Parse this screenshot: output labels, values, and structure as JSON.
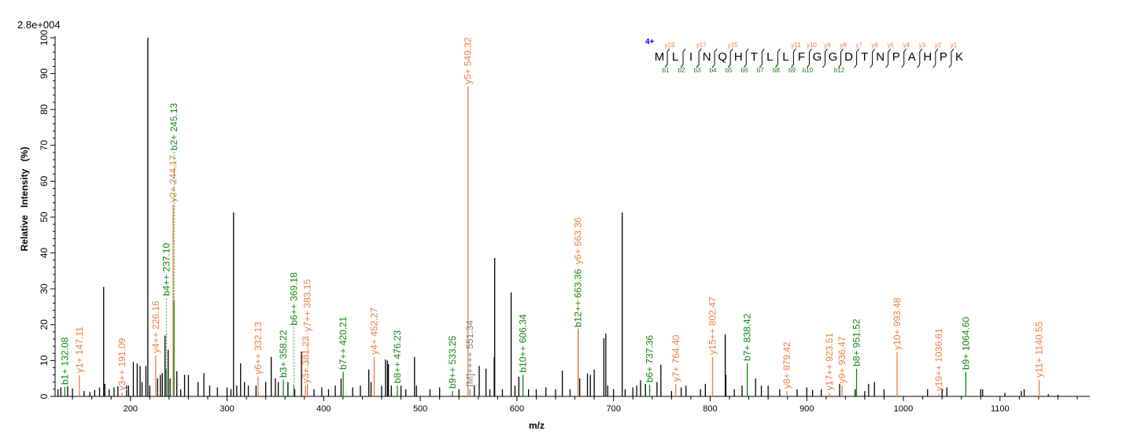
{
  "chart_data": {
    "type": "bar",
    "title": "",
    "xlabel": "m/z",
    "ylabel": "Relative Intensity (%)",
    "scale_label": "2.8e+004",
    "xlim": [
      122,
      1193
    ],
    "ylim": [
      0,
      100
    ],
    "x_ticks": [
      200,
      300,
      400,
      500,
      600,
      700,
      800,
      900,
      1000,
      1100
    ],
    "y_ticks": [
      0,
      10,
      20,
      30,
      40,
      50,
      60,
      70,
      80,
      90,
      100
    ],
    "colors": {
      "y": "#f07d3c",
      "b": "#0a8a0a",
      "m": "#808080",
      "peak": "#000000",
      "charge": "#0000ff"
    },
    "annotated_peaks": [
      {
        "label": "b1+ 132.08",
        "mz": 132.08,
        "intensity": 2.6,
        "type": "b"
      },
      {
        "label": "y1+ 147.11",
        "mz": 147.11,
        "intensity": 5.9,
        "type": "y"
      },
      {
        "label": "y3++ 191.09",
        "mz": 191.09,
        "intensity": 1.0,
        "type": "y"
      },
      {
        "label": "y4++ 226.16",
        "mz": 226.16,
        "intensity": 11.4,
        "type": "y"
      },
      {
        "label": "b4++ 237.10",
        "mz": 237.1,
        "intensity": 7.5,
        "type": "b"
      },
      {
        "label": "y2+ 244.17",
        "mz": 244.17,
        "intensity": 53.5,
        "type": "y"
      },
      {
        "label": "b2+ 245.13",
        "mz": 245.13,
        "intensity": 26.5,
        "type": "b"
      },
      {
        "label": "y6++ 332.13",
        "mz": 332.13,
        "intensity": 5.5,
        "type": "y"
      },
      {
        "label": "b3+ 358.22",
        "mz": 358.22,
        "intensity": 4.6,
        "type": "b"
      },
      {
        "label": "b6++ 369.18",
        "mz": 369.18,
        "intensity": 3.0,
        "type": "b"
      },
      {
        "label": "y3+ 381.23",
        "mz": 381.23,
        "intensity": 3.0,
        "type": "y"
      },
      {
        "label": "y7++ 383.15",
        "mz": 383.15,
        "intensity": 3.3,
        "type": "y"
      },
      {
        "label": "b7++ 420.21",
        "mz": 420.21,
        "intensity": 6.8,
        "type": "b"
      },
      {
        "label": "y4+ 452.27",
        "mz": 452.27,
        "intensity": 11.0,
        "type": "y"
      },
      {
        "label": "b8++ 476.23",
        "mz": 476.23,
        "intensity": 3.0,
        "type": "b"
      },
      {
        "label": "b9++ 533.25",
        "mz": 533.25,
        "intensity": 1.5,
        "type": "b"
      },
      {
        "label": "y5+ 549.32",
        "mz": 549.32,
        "intensity": 86.4,
        "type": "y"
      },
      {
        "label": "[M]++++ 551.34",
        "mz": 551.34,
        "intensity": 2.0,
        "type": "m"
      },
      {
        "label": "b10++ 606.34",
        "mz": 606.34,
        "intensity": 6.0,
        "type": "b"
      },
      {
        "label": "b12++ 663.36",
        "mz": 663.36,
        "intensity": 18.6,
        "type": "b"
      },
      {
        "label": "y6+ 663.36",
        "mz": 663.36,
        "intensity": 18.6,
        "type": "y"
      },
      {
        "label": "b6+ 737.36",
        "mz": 737.36,
        "intensity": 3.2,
        "type": "b"
      },
      {
        "label": "y7+ 764.40",
        "mz": 764.4,
        "intensity": 3.4,
        "type": "y"
      },
      {
        "label": "y15++ 802.47",
        "mz": 802.47,
        "intensity": 11.0,
        "type": "y"
      },
      {
        "label": "b7+ 838.42",
        "mz": 838.42,
        "intensity": 9.2,
        "type": "b"
      },
      {
        "label": "y8+ 879.42",
        "mz": 879.42,
        "intensity": 1.5,
        "type": "y"
      },
      {
        "label": "y17++ 923.51",
        "mz": 923.51,
        "intensity": 1.0,
        "type": "y"
      },
      {
        "label": "y9+ 936.47",
        "mz": 936.47,
        "intensity": 3.0,
        "type": "y"
      },
      {
        "label": "b8+ 951.52",
        "mz": 951.52,
        "intensity": 7.7,
        "type": "b"
      },
      {
        "label": "y10+ 993.48",
        "mz": 993.48,
        "intensity": 12.3,
        "type": "y"
      },
      {
        "label": "y19++ 1036.61",
        "mz": 1036.61,
        "intensity": 0.8,
        "type": "y"
      },
      {
        "label": "b9+ 1064.60",
        "mz": 1064.6,
        "intensity": 6.8,
        "type": "b"
      },
      {
        "label": "y11+ 1140.55",
        "mz": 1140.55,
        "intensity": 4.6,
        "type": "y"
      }
    ],
    "peaks": [
      [
        125,
        2
      ],
      [
        128,
        2.5
      ],
      [
        135,
        2.8
      ],
      [
        140,
        2.2
      ],
      [
        152,
        1.5
      ],
      [
        158,
        1.2
      ],
      [
        163,
        1.8
      ],
      [
        168,
        2.5
      ],
      [
        172.3,
        30.5
      ],
      [
        173.5,
        3.5
      ],
      [
        178,
        2
      ],
      [
        183,
        2.5
      ],
      [
        187,
        2.8
      ],
      [
        196,
        3
      ],
      [
        198,
        3
      ],
      [
        203,
        9.6
      ],
      [
        207,
        9.2
      ],
      [
        210,
        8.5
      ],
      [
        212,
        4
      ],
      [
        216,
        8.5
      ],
      [
        218,
        100
      ],
      [
        220,
        3
      ],
      [
        228,
        5
      ],
      [
        231,
        6
      ],
      [
        233,
        6.5
      ],
      [
        235.8,
        17
      ],
      [
        239,
        13
      ],
      [
        241,
        5
      ],
      [
        248,
        7
      ],
      [
        252,
        2
      ],
      [
        256,
        6
      ],
      [
        260,
        6
      ],
      [
        270,
        4
      ],
      [
        276,
        6.5
      ],
      [
        282,
        3
      ],
      [
        290,
        2.5
      ],
      [
        300,
        2.5
      ],
      [
        304,
        2
      ],
      [
        306.7,
        51.3
      ],
      [
        310,
        3
      ],
      [
        314,
        9.2
      ],
      [
        318,
        4
      ],
      [
        322,
        3
      ],
      [
        330,
        3
      ],
      [
        340,
        4
      ],
      [
        345.7,
        11
      ],
      [
        350,
        5
      ],
      [
        353,
        4
      ],
      [
        363,
        4
      ],
      [
        370,
        2
      ],
      [
        377,
        12.5
      ],
      [
        390,
        2
      ],
      [
        398,
        2.5
      ],
      [
        405,
        2
      ],
      [
        412,
        3
      ],
      [
        418,
        5
      ],
      [
        430,
        2.5
      ],
      [
        438,
        3
      ],
      [
        446.7,
        7.5
      ],
      [
        449,
        4
      ],
      [
        460,
        3
      ],
      [
        464,
        10.3
      ],
      [
        466,
        10
      ],
      [
        467,
        9
      ],
      [
        470,
        3
      ],
      [
        480,
        3
      ],
      [
        485,
        2
      ],
      [
        494,
        11
      ],
      [
        496,
        3
      ],
      [
        510,
        2
      ],
      [
        520,
        2.5
      ],
      [
        540,
        2
      ],
      [
        556,
        3
      ],
      [
        561,
        8.5
      ],
      [
        568,
        7.7
      ],
      [
        572,
        2
      ],
      [
        576.5,
        11
      ],
      [
        577,
        38.6
      ],
      [
        585,
        2
      ],
      [
        594,
        29
      ],
      [
        598,
        3
      ],
      [
        602,
        5.5
      ],
      [
        612,
        2
      ],
      [
        620,
        2
      ],
      [
        630,
        2.5
      ],
      [
        640,
        2
      ],
      [
        647,
        7.2
      ],
      [
        655,
        2
      ],
      [
        665,
        5
      ],
      [
        673,
        6.4
      ],
      [
        676,
        6
      ],
      [
        680,
        7.5
      ],
      [
        690,
        16.2
      ],
      [
        692,
        17.5
      ],
      [
        694,
        3
      ],
      [
        700,
        2
      ],
      [
        709,
        51.3
      ],
      [
        712,
        2
      ],
      [
        720,
        2.5
      ],
      [
        724,
        3
      ],
      [
        728,
        4.5
      ],
      [
        733,
        3.5
      ],
      [
        745,
        4
      ],
      [
        749,
        8.8
      ],
      [
        760,
        1.5
      ],
      [
        770,
        2.5
      ],
      [
        775,
        3
      ],
      [
        790,
        2
      ],
      [
        795,
        3.5
      ],
      [
        815.6,
        17.3
      ],
      [
        816.3,
        6
      ],
      [
        825,
        2
      ],
      [
        833,
        3
      ],
      [
        847,
        5
      ],
      [
        853,
        3
      ],
      [
        860,
        3
      ],
      [
        872,
        2
      ],
      [
        890,
        2
      ],
      [
        900,
        2.5
      ],
      [
        906,
        1.8
      ],
      [
        915,
        2
      ],
      [
        934,
        3.5
      ],
      [
        950,
        2
      ],
      [
        960,
        1.5
      ],
      [
        964,
        3.5
      ],
      [
        970,
        4
      ],
      [
        980,
        2
      ],
      [
        1025,
        2
      ],
      [
        1040,
        2
      ],
      [
        1045,
        2.5
      ],
      [
        1080,
        2
      ],
      [
        1082,
        2
      ],
      [
        1105,
        1
      ],
      [
        1122,
        1.5
      ],
      [
        1125,
        2
      ],
      [
        1150,
        0.6
      ],
      [
        1160,
        0.5
      ]
    ]
  },
  "sequence": {
    "charge": "4+",
    "residues": [
      "M",
      "L",
      "I",
      "N",
      "Q",
      "H",
      "T",
      "L",
      "L",
      "F",
      "G",
      "G",
      "D",
      "T",
      "N",
      "P",
      "A",
      "H",
      "P",
      "K"
    ],
    "breaks": [
      {
        "after": 1,
        "y": "y19",
        "b": "b1"
      },
      {
        "after": 2,
        "y": "",
        "b": "b2"
      },
      {
        "after": 3,
        "y": "y17",
        "b": "b3"
      },
      {
        "after": 4,
        "y": "",
        "b": "b4"
      },
      {
        "after": 5,
        "y": "y15",
        "b": "b5"
      },
      {
        "after": 6,
        "y": "",
        "b": "b6"
      },
      {
        "after": 7,
        "y": "",
        "b": "b7"
      },
      {
        "after": 8,
        "y": "",
        "b": "b8"
      },
      {
        "after": 9,
        "y": "y11",
        "b": "b9"
      },
      {
        "after": 10,
        "y": "y10",
        "b": "b10"
      },
      {
        "after": 11,
        "y": "y9",
        "b": ""
      },
      {
        "after": 12,
        "y": "y8",
        "b": "b12"
      },
      {
        "after": 13,
        "y": "y7",
        "b": ""
      },
      {
        "after": 14,
        "y": "y6",
        "b": ""
      },
      {
        "after": 15,
        "y": "y5",
        "b": ""
      },
      {
        "after": 16,
        "y": "y4",
        "b": ""
      },
      {
        "after": 17,
        "y": "y3",
        "b": ""
      },
      {
        "after": 18,
        "y": "y2",
        "b": ""
      },
      {
        "after": 19,
        "y": "y1",
        "b": ""
      }
    ]
  }
}
